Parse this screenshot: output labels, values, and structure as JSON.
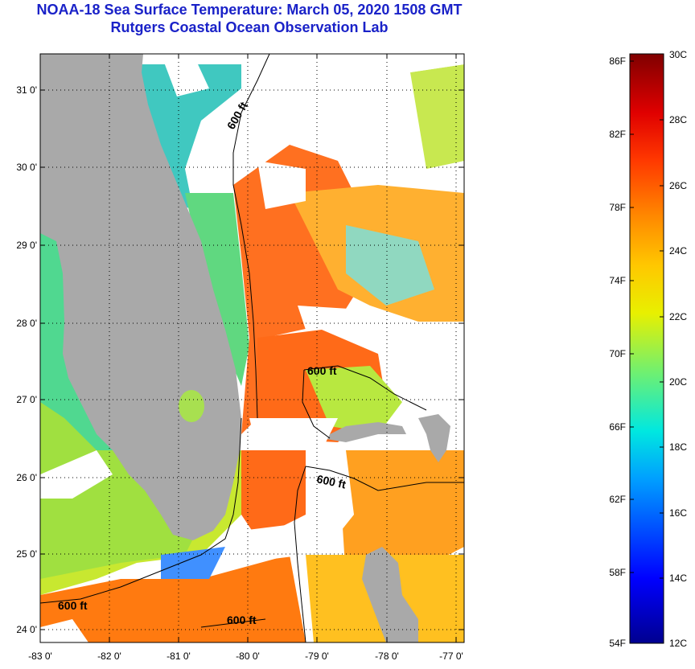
{
  "title_line1": "NOAA-18 Sea Surface Temperature:  March 05, 2020 1508 GMT",
  "title_line2": "Rutgers Coastal Ocean Observation Lab",
  "map": {
    "lat_labels": [
      "31 0'",
      "30 0'",
      "29 0'",
      "28 0'",
      "27 0'",
      "26 0'",
      "25 0'",
      "24 0'"
    ],
    "lon_labels": [
      "-83 0'",
      "-82 0'",
      "-81 0'",
      "-80 0'",
      "-79 0'",
      "-78 0'",
      "-77 0'"
    ],
    "contour_label": "600 ft",
    "contour_label_count": 5
  },
  "colorbar": {
    "fahrenheit_labels": [
      "86F",
      "82F",
      "78F",
      "74F",
      "70F",
      "66F",
      "62F",
      "58F",
      "54F"
    ],
    "celsius_labels": [
      "30C",
      "28C",
      "26C",
      "24C",
      "22C",
      "20C",
      "18C",
      "16C",
      "14C",
      "12C"
    ],
    "min_c": 12,
    "max_c": 30,
    "min_f": 54,
    "max_f": 86
  },
  "colors": {
    "title": "#1a22c8",
    "land": "#a9a9a9",
    "cloud": "#ffffff"
  }
}
